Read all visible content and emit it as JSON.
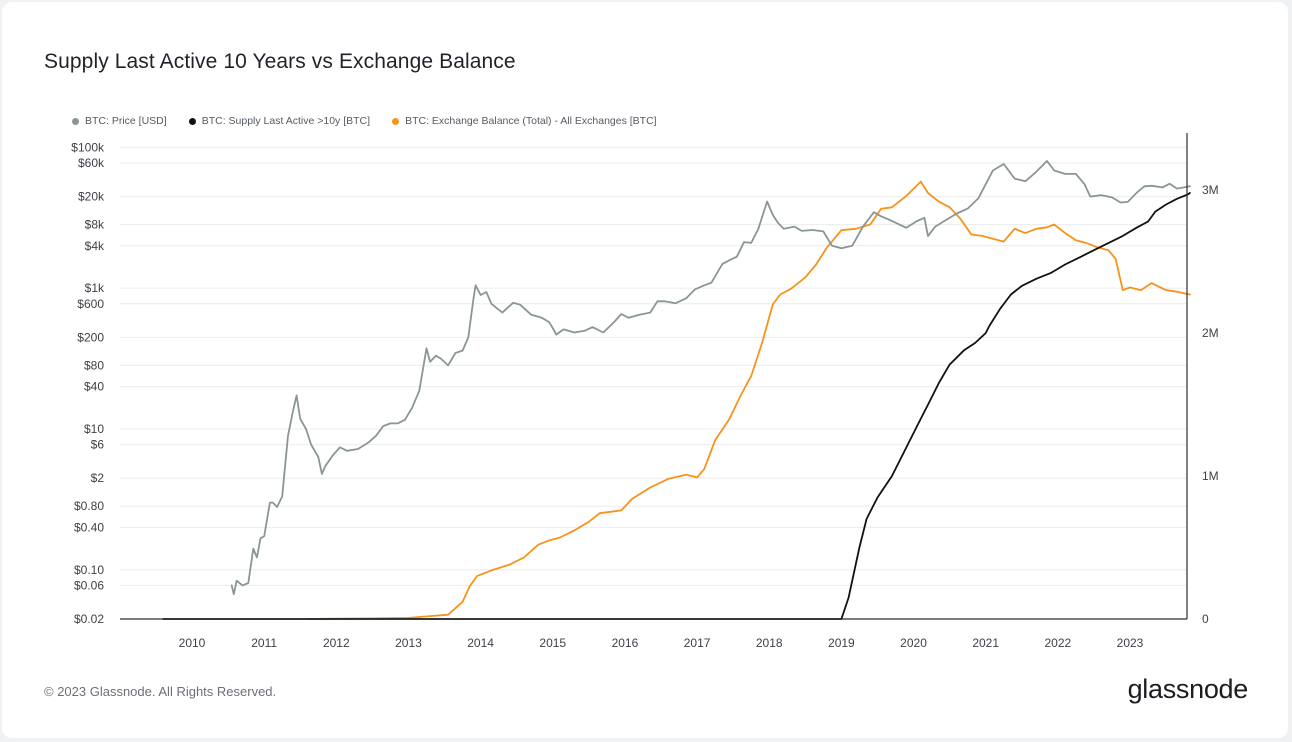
{
  "chart_data": {
    "type": "line",
    "title": "Supply Last Active 10 Years vs Exchange Balance",
    "x": [
      2010,
      2011,
      2012,
      2013,
      2014,
      2015,
      2016,
      2017,
      2018,
      2019,
      2020,
      2021,
      2022,
      2023
    ],
    "x_range": [
      2009.6,
      2023.83
    ],
    "left_axis": {
      "scale": "log",
      "range": [
        0.02,
        160000
      ],
      "tick_values": [
        100000,
        60000,
        20000,
        8000,
        4000,
        1000,
        600,
        200,
        80,
        40,
        10,
        6,
        2,
        0.8,
        0.4,
        0.1,
        0.06,
        0.02
      ],
      "tick_labels": [
        "$100k",
        "$60k",
        "$20k",
        "$8k",
        "$4k",
        "$1k",
        "$600",
        "$200",
        "$80",
        "$40",
        "$10",
        "$6",
        "$2",
        "$0.80",
        "$0.40",
        "$0.10",
        "$0.06",
        "$0.02"
      ]
    },
    "right_axis": {
      "scale": "linear",
      "range": [
        0,
        3400000
      ],
      "tick_values": [
        0,
        1000000,
        2000000,
        3000000
      ],
      "tick_labels": [
        "0",
        "1M",
        "2M",
        "3M"
      ]
    },
    "series": [
      {
        "name": "BTC: Price [USD]",
        "axis": "left",
        "color": "#8a9691",
        "points": [
          [
            2010.55,
            0.06
          ],
          [
            2010.58,
            0.045
          ],
          [
            2010.62,
            0.07
          ],
          [
            2010.7,
            0.06
          ],
          [
            2010.78,
            0.065
          ],
          [
            2010.85,
            0.2
          ],
          [
            2010.9,
            0.15
          ],
          [
            2010.95,
            0.28
          ],
          [
            2011.0,
            0.3
          ],
          [
            2011.08,
            0.9
          ],
          [
            2011.12,
            0.9
          ],
          [
            2011.18,
            0.78
          ],
          [
            2011.25,
            1.1
          ],
          [
            2011.33,
            8
          ],
          [
            2011.4,
            18
          ],
          [
            2011.45,
            30
          ],
          [
            2011.5,
            14
          ],
          [
            2011.58,
            10
          ],
          [
            2011.65,
            6
          ],
          [
            2011.75,
            4
          ],
          [
            2011.8,
            2.3
          ],
          [
            2011.85,
            3
          ],
          [
            2011.95,
            4.2
          ],
          [
            2012.05,
            5.5
          ],
          [
            2012.15,
            4.9
          ],
          [
            2012.3,
            5.2
          ],
          [
            2012.45,
            6.5
          ],
          [
            2012.55,
            8
          ],
          [
            2012.65,
            11
          ],
          [
            2012.75,
            12
          ],
          [
            2012.85,
            12
          ],
          [
            2012.95,
            13.5
          ],
          [
            2013.05,
            20
          ],
          [
            2013.15,
            35
          ],
          [
            2013.25,
            140
          ],
          [
            2013.3,
            90
          ],
          [
            2013.38,
            110
          ],
          [
            2013.45,
            100
          ],
          [
            2013.55,
            80
          ],
          [
            2013.65,
            120
          ],
          [
            2013.75,
            130
          ],
          [
            2013.83,
            200
          ],
          [
            2013.9,
            700
          ],
          [
            2013.93,
            1100
          ],
          [
            2014.0,
            800
          ],
          [
            2014.08,
            880
          ],
          [
            2014.15,
            600
          ],
          [
            2014.3,
            450
          ],
          [
            2014.45,
            620
          ],
          [
            2014.55,
            580
          ],
          [
            2014.7,
            420
          ],
          [
            2014.85,
            380
          ],
          [
            2014.95,
            330
          ],
          [
            2015.05,
            220
          ],
          [
            2015.15,
            260
          ],
          [
            2015.3,
            235
          ],
          [
            2015.45,
            250
          ],
          [
            2015.55,
            280
          ],
          [
            2015.7,
            235
          ],
          [
            2015.85,
            330
          ],
          [
            2015.95,
            430
          ],
          [
            2016.05,
            380
          ],
          [
            2016.2,
            420
          ],
          [
            2016.35,
            450
          ],
          [
            2016.45,
            650
          ],
          [
            2016.55,
            650
          ],
          [
            2016.7,
            610
          ],
          [
            2016.85,
            720
          ],
          [
            2016.97,
            960
          ],
          [
            2017.1,
            1100
          ],
          [
            2017.2,
            1200
          ],
          [
            2017.35,
            2200
          ],
          [
            2017.45,
            2500
          ],
          [
            2017.55,
            2800
          ],
          [
            2017.65,
            4500
          ],
          [
            2017.75,
            4400
          ],
          [
            2017.85,
            7000
          ],
          [
            2017.97,
            17000
          ],
          [
            2018.05,
            11000
          ],
          [
            2018.12,
            8500
          ],
          [
            2018.2,
            7000
          ],
          [
            2018.35,
            7500
          ],
          [
            2018.45,
            6500
          ],
          [
            2018.6,
            6700
          ],
          [
            2018.75,
            6400
          ],
          [
            2018.87,
            4000
          ],
          [
            2019.0,
            3700
          ],
          [
            2019.15,
            4000
          ],
          [
            2019.3,
            7500
          ],
          [
            2019.45,
            12000
          ],
          [
            2019.55,
            10500
          ],
          [
            2019.65,
            9500
          ],
          [
            2019.75,
            8500
          ],
          [
            2019.9,
            7200
          ],
          [
            2020.05,
            9000
          ],
          [
            2020.15,
            10000
          ],
          [
            2020.2,
            5500
          ],
          [
            2020.3,
            7500
          ],
          [
            2020.45,
            9300
          ],
          [
            2020.6,
            11500
          ],
          [
            2020.75,
            13500
          ],
          [
            2020.9,
            19000
          ],
          [
            2021.0,
            30000
          ],
          [
            2021.1,
            47000
          ],
          [
            2021.25,
            58000
          ],
          [
            2021.4,
            36000
          ],
          [
            2021.55,
            33000
          ],
          [
            2021.7,
            45000
          ],
          [
            2021.85,
            64000
          ],
          [
            2021.95,
            47000
          ],
          [
            2022.1,
            42000
          ],
          [
            2022.25,
            42000
          ],
          [
            2022.37,
            30000
          ],
          [
            2022.45,
            20000
          ],
          [
            2022.6,
            21000
          ],
          [
            2022.75,
            19500
          ],
          [
            2022.87,
            16500
          ],
          [
            2022.97,
            16800
          ],
          [
            2023.1,
            23000
          ],
          [
            2023.2,
            28000
          ],
          [
            2023.3,
            28500
          ],
          [
            2023.45,
            27000
          ],
          [
            2023.55,
            30500
          ],
          [
            2023.65,
            26000
          ],
          [
            2023.75,
            27000
          ],
          [
            2023.83,
            28000
          ]
        ]
      },
      {
        "name": "BTC: Supply Last Active >10y [BTC]",
        "axis": "right",
        "color": "#111111",
        "points": [
          [
            2009.6,
            0
          ],
          [
            2019.0,
            0
          ],
          [
            2019.1,
            150000
          ],
          [
            2019.25,
            500000
          ],
          [
            2019.35,
            700000
          ],
          [
            2019.5,
            850000
          ],
          [
            2019.7,
            1000000
          ],
          [
            2019.9,
            1200000
          ],
          [
            2020.05,
            1350000
          ],
          [
            2020.2,
            1500000
          ],
          [
            2020.35,
            1650000
          ],
          [
            2020.5,
            1780000
          ],
          [
            2020.7,
            1880000
          ],
          [
            2020.85,
            1930000
          ],
          [
            2021.0,
            2000000
          ],
          [
            2021.05,
            2050000
          ],
          [
            2021.2,
            2170000
          ],
          [
            2021.35,
            2270000
          ],
          [
            2021.5,
            2330000
          ],
          [
            2021.7,
            2380000
          ],
          [
            2021.9,
            2420000
          ],
          [
            2022.1,
            2480000
          ],
          [
            2022.3,
            2530000
          ],
          [
            2022.5,
            2580000
          ],
          [
            2022.7,
            2630000
          ],
          [
            2022.9,
            2680000
          ],
          [
            2023.1,
            2740000
          ],
          [
            2023.25,
            2780000
          ],
          [
            2023.35,
            2850000
          ],
          [
            2023.5,
            2900000
          ],
          [
            2023.65,
            2940000
          ],
          [
            2023.8,
            2970000
          ],
          [
            2023.83,
            2980000
          ]
        ]
      },
      {
        "name": "BTC: Exchange Balance (Total) - All Exchanges [BTC]",
        "axis": "right",
        "color": "#f7931a",
        "points": [
          [
            2011.6,
            0
          ],
          [
            2012.0,
            2000
          ],
          [
            2012.5,
            4000
          ],
          [
            2013.0,
            8000
          ],
          [
            2013.3,
            20000
          ],
          [
            2013.55,
            30000
          ],
          [
            2013.75,
            120000
          ],
          [
            2013.85,
            230000
          ],
          [
            2013.95,
            300000
          ],
          [
            2014.15,
            340000
          ],
          [
            2014.4,
            380000
          ],
          [
            2014.6,
            430000
          ],
          [
            2014.8,
            520000
          ],
          [
            2014.95,
            550000
          ],
          [
            2015.1,
            570000
          ],
          [
            2015.3,
            620000
          ],
          [
            2015.5,
            680000
          ],
          [
            2015.65,
            740000
          ],
          [
            2015.8,
            750000
          ],
          [
            2015.95,
            760000
          ],
          [
            2016.1,
            840000
          ],
          [
            2016.35,
            920000
          ],
          [
            2016.6,
            980000
          ],
          [
            2016.85,
            1010000
          ],
          [
            2017.0,
            990000
          ],
          [
            2017.1,
            1050000
          ],
          [
            2017.25,
            1250000
          ],
          [
            2017.45,
            1400000
          ],
          [
            2017.6,
            1560000
          ],
          [
            2017.75,
            1700000
          ],
          [
            2017.9,
            1930000
          ],
          [
            2018.05,
            2200000
          ],
          [
            2018.15,
            2270000
          ],
          [
            2018.3,
            2310000
          ],
          [
            2018.5,
            2390000
          ],
          [
            2018.65,
            2480000
          ],
          [
            2018.8,
            2600000
          ],
          [
            2019.0,
            2720000
          ],
          [
            2019.2,
            2730000
          ],
          [
            2019.4,
            2760000
          ],
          [
            2019.55,
            2870000
          ],
          [
            2019.7,
            2880000
          ],
          [
            2019.9,
            2960000
          ],
          [
            2020.1,
            3060000
          ],
          [
            2020.2,
            2980000
          ],
          [
            2020.35,
            2920000
          ],
          [
            2020.5,
            2880000
          ],
          [
            2020.65,
            2800000
          ],
          [
            2020.8,
            2690000
          ],
          [
            2020.95,
            2680000
          ],
          [
            2021.1,
            2660000
          ],
          [
            2021.25,
            2640000
          ],
          [
            2021.4,
            2730000
          ],
          [
            2021.55,
            2700000
          ],
          [
            2021.7,
            2730000
          ],
          [
            2021.85,
            2740000
          ],
          [
            2021.95,
            2760000
          ],
          [
            2022.1,
            2700000
          ],
          [
            2022.25,
            2650000
          ],
          [
            2022.4,
            2630000
          ],
          [
            2022.55,
            2600000
          ],
          [
            2022.7,
            2580000
          ],
          [
            2022.8,
            2520000
          ],
          [
            2022.9,
            2300000
          ],
          [
            2023.0,
            2320000
          ],
          [
            2023.15,
            2300000
          ],
          [
            2023.3,
            2350000
          ],
          [
            2023.5,
            2300000
          ],
          [
            2023.65,
            2290000
          ],
          [
            2023.83,
            2270000
          ]
        ]
      }
    ]
  },
  "footer": {
    "copyright": "© 2023 Glassnode. All Rights Reserved."
  },
  "brand": {
    "logo_text": "glassnode"
  }
}
